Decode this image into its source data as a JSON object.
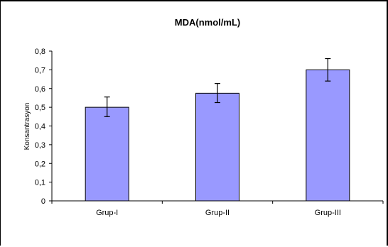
{
  "chart_data": {
    "type": "bar",
    "title": "MDA(nmol/mL)",
    "xlabel": "",
    "ylabel": "Konsantrasyon",
    "categories": [
      "Grup-I",
      "Grup-II",
      "Grup-III"
    ],
    "series": [
      {
        "values": [
          0.5,
          0.575,
          0.7
        ],
        "error_low": [
          0.45,
          0.525,
          0.64
        ],
        "error_high": [
          0.555,
          0.627,
          0.76
        ]
      }
    ],
    "ylim": [
      0,
      0.8
    ],
    "yticks": [
      "0",
      "0,1",
      "0,2",
      "0,3",
      "0,4",
      "0,5",
      "0,6",
      "0,7",
      "0,8"
    ],
    "grid": false,
    "legend": "none",
    "colors": {
      "bar_fill": "#9999ff",
      "bar_stroke": "#000000",
      "axis": "#000000",
      "background": "#ffffff"
    }
  }
}
